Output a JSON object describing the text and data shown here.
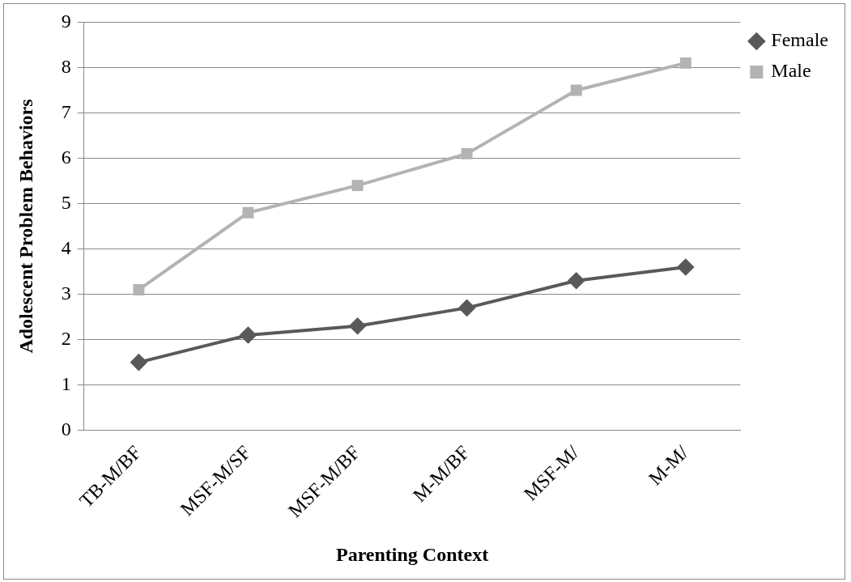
{
  "chart_data": {
    "type": "line",
    "xlabel": "Parenting Context",
    "ylabel": "Adolescent Problem Behaviors",
    "categories": [
      "TB-M/BF",
      "MSF-M/SF",
      "MSF-M/BF",
      "M-M/BF",
      "MSF-M/",
      "M-M/"
    ],
    "series": [
      {
        "name": "Female",
        "color": "#595959",
        "marker": "diamond",
        "values": [
          1.5,
          2.1,
          2.3,
          2.7,
          3.3,
          3.6
        ]
      },
      {
        "name": "Male",
        "color": "#b3b3b3",
        "marker": "square",
        "values": [
          3.1,
          4.8,
          5.4,
          6.1,
          7.5,
          8.1
        ]
      }
    ],
    "ylim": [
      0,
      9
    ],
    "yticks": [
      0,
      1,
      2,
      3,
      4,
      5,
      6,
      7,
      8,
      9
    ],
    "grid": "y",
    "legend": "right",
    "line_style": "solid"
  }
}
